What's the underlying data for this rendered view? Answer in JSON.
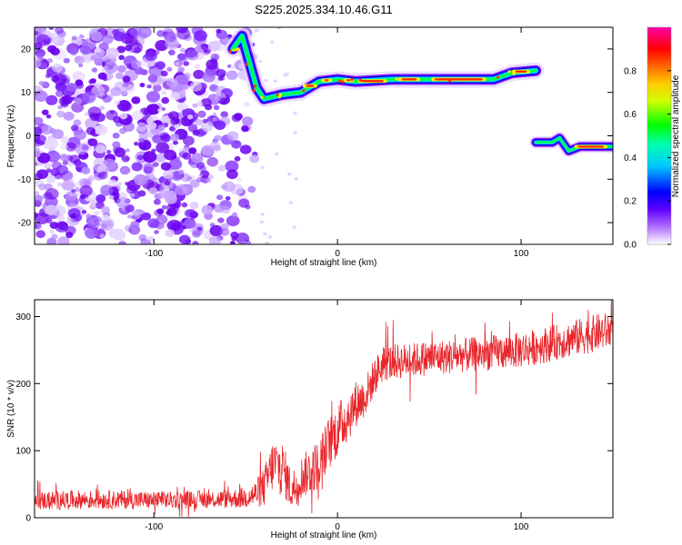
{
  "title": "S225.2025.334.10.46.G11",
  "chart_data": [
    {
      "type": "heatmap",
      "title": "S225.2025.334.10.46.G11",
      "xlabel": "Height of straight line (km)",
      "ylabel": "Frequency (Hz)",
      "xlim": [
        -165,
        150
      ],
      "ylim": [
        -25,
        25
      ],
      "xticks": [
        -100,
        0,
        100
      ],
      "yticks": [
        -20,
        -10,
        0,
        10,
        20
      ],
      "colorbar": {
        "label": "Normalized spectral amplitude",
        "range": [
          0,
          1
        ],
        "ticks": [
          0.0,
          0.2,
          0.4,
          0.6,
          0.8
        ],
        "tick_labels": [
          "0.0",
          "0.2",
          "0.4",
          "0.6",
          "0.8"
        ]
      },
      "colors": [
        "#ffffff",
        "#7a00ff",
        "#0000ff",
        "#00e5ff",
        "#00ff33",
        "#ffff00",
        "#ff7f00",
        "#ff0000",
        "#ff00aa"
      ],
      "signal_track": [
        {
          "x": -57,
          "f": 20
        },
        {
          "x": -52,
          "f": 23
        },
        {
          "x": -48,
          "f": 17
        },
        {
          "x": -44,
          "f": 11
        },
        {
          "x": -40,
          "f": 8.5
        },
        {
          "x": -30,
          "f": 9.5
        },
        {
          "x": -20,
          "f": 10
        },
        {
          "x": -10,
          "f": 12.5
        },
        {
          "x": 0,
          "f": 13
        },
        {
          "x": 10,
          "f": 12.5
        },
        {
          "x": 30,
          "f": 13
        },
        {
          "x": 60,
          "f": 13
        },
        {
          "x": 85,
          "f": 13
        },
        {
          "x": 95,
          "f": 14.5
        },
        {
          "x": 108,
          "f": 15
        }
      ],
      "signal_track_2": [
        {
          "x": 108,
          "f": -1.5
        },
        {
          "x": 117,
          "f": -1.5
        },
        {
          "x": 121,
          "f": -0.5
        },
        {
          "x": 126,
          "f": -3.5
        },
        {
          "x": 132,
          "f": -2.5
        },
        {
          "x": 150,
          "f": -2.5
        }
      ],
      "noise_region_x": [
        -165,
        -50
      ]
    },
    {
      "type": "line",
      "xlabel": "Height of straight line (km)",
      "ylabel": "SNR (10 * v/v)",
      "xlim": [
        -165,
        150
      ],
      "ylim": [
        0,
        325
      ],
      "xticks": [
        -100,
        0,
        100
      ],
      "yticks": [
        0,
        100,
        200,
        300
      ],
      "color": "#e8262b",
      "series": [
        {
          "name": "SNR",
          "x": [
            -165,
            -140,
            -120,
            -100,
            -80,
            -60,
            -50,
            -45,
            -40,
            -35,
            -30,
            -25,
            -20,
            -15,
            -10,
            -5,
            0,
            5,
            10,
            15,
            20,
            25,
            30,
            40,
            50,
            60,
            80,
            100,
            120,
            140,
            150
          ],
          "y": [
            25,
            27,
            27,
            26,
            27,
            28,
            30,
            35,
            45,
            80,
            75,
            40,
            60,
            70,
            80,
            110,
            130,
            150,
            170,
            180,
            210,
            230,
            232,
            235,
            238,
            240,
            245,
            250,
            262,
            275,
            280
          ],
          "noise_amp": [
            14,
            14,
            14,
            13,
            13,
            14,
            16,
            20,
            30,
            40,
            40,
            30,
            32,
            35,
            38,
            40,
            40,
            40,
            35,
            30,
            28,
            27,
            27,
            26,
            26,
            26,
            26,
            27,
            27,
            28,
            28
          ]
        }
      ]
    }
  ]
}
